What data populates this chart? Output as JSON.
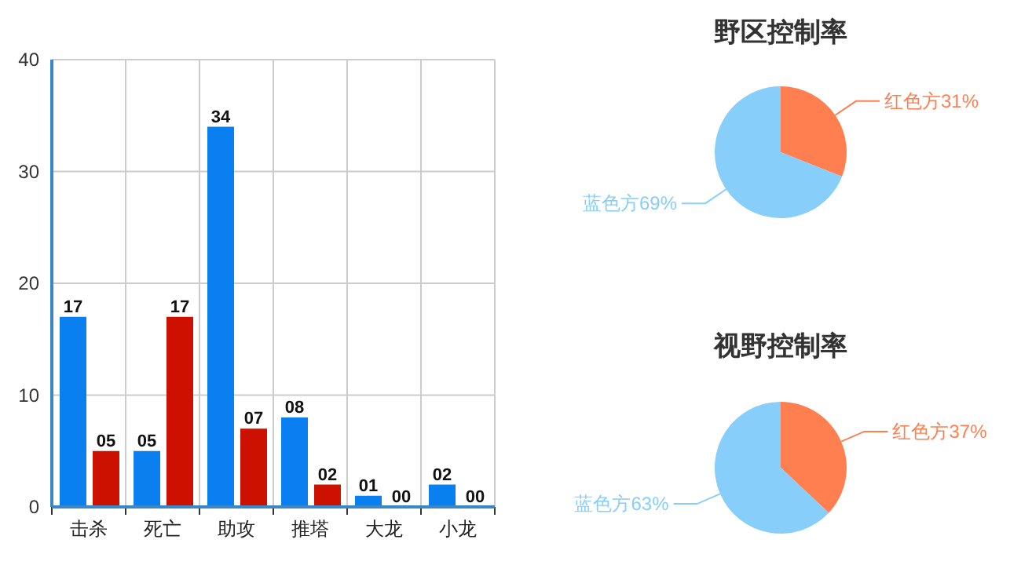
{
  "chart_data": [
    {
      "type": "bar",
      "categories": [
        "击杀",
        "死亡",
        "助攻",
        "推塔",
        "大龙",
        "小龙"
      ],
      "series": [
        {
          "color": "#0a80f0",
          "values": [
            17,
            5,
            34,
            8,
            1,
            2
          ],
          "value_labels": [
            "17",
            "05",
            "34",
            "08",
            "01",
            "02"
          ]
        },
        {
          "color": "#cc1100",
          "values": [
            5,
            17,
            7,
            2,
            0,
            0
          ],
          "value_labels": [
            "05",
            "17",
            "07",
            "02",
            "00",
            "00"
          ]
        }
      ],
      "ylim": [
        0,
        40
      ],
      "yticks": [
        0,
        10,
        20,
        30,
        40
      ],
      "grid": true
    },
    {
      "type": "pie",
      "title": "野区控制率",
      "categories": [
        "红色方",
        "蓝色方"
      ],
      "values": [
        31,
        69
      ],
      "value_labels": [
        "31%",
        "69%"
      ],
      "colors": [
        "#ff7f50",
        "#87cefa"
      ]
    },
    {
      "type": "pie",
      "title": "视野控制率",
      "categories": [
        "红色方",
        "蓝色方"
      ],
      "values": [
        37,
        63
      ],
      "value_labels": [
        "37%",
        "63%"
      ],
      "colors": [
        "#ff7f50",
        "#87cefa"
      ]
    }
  ]
}
